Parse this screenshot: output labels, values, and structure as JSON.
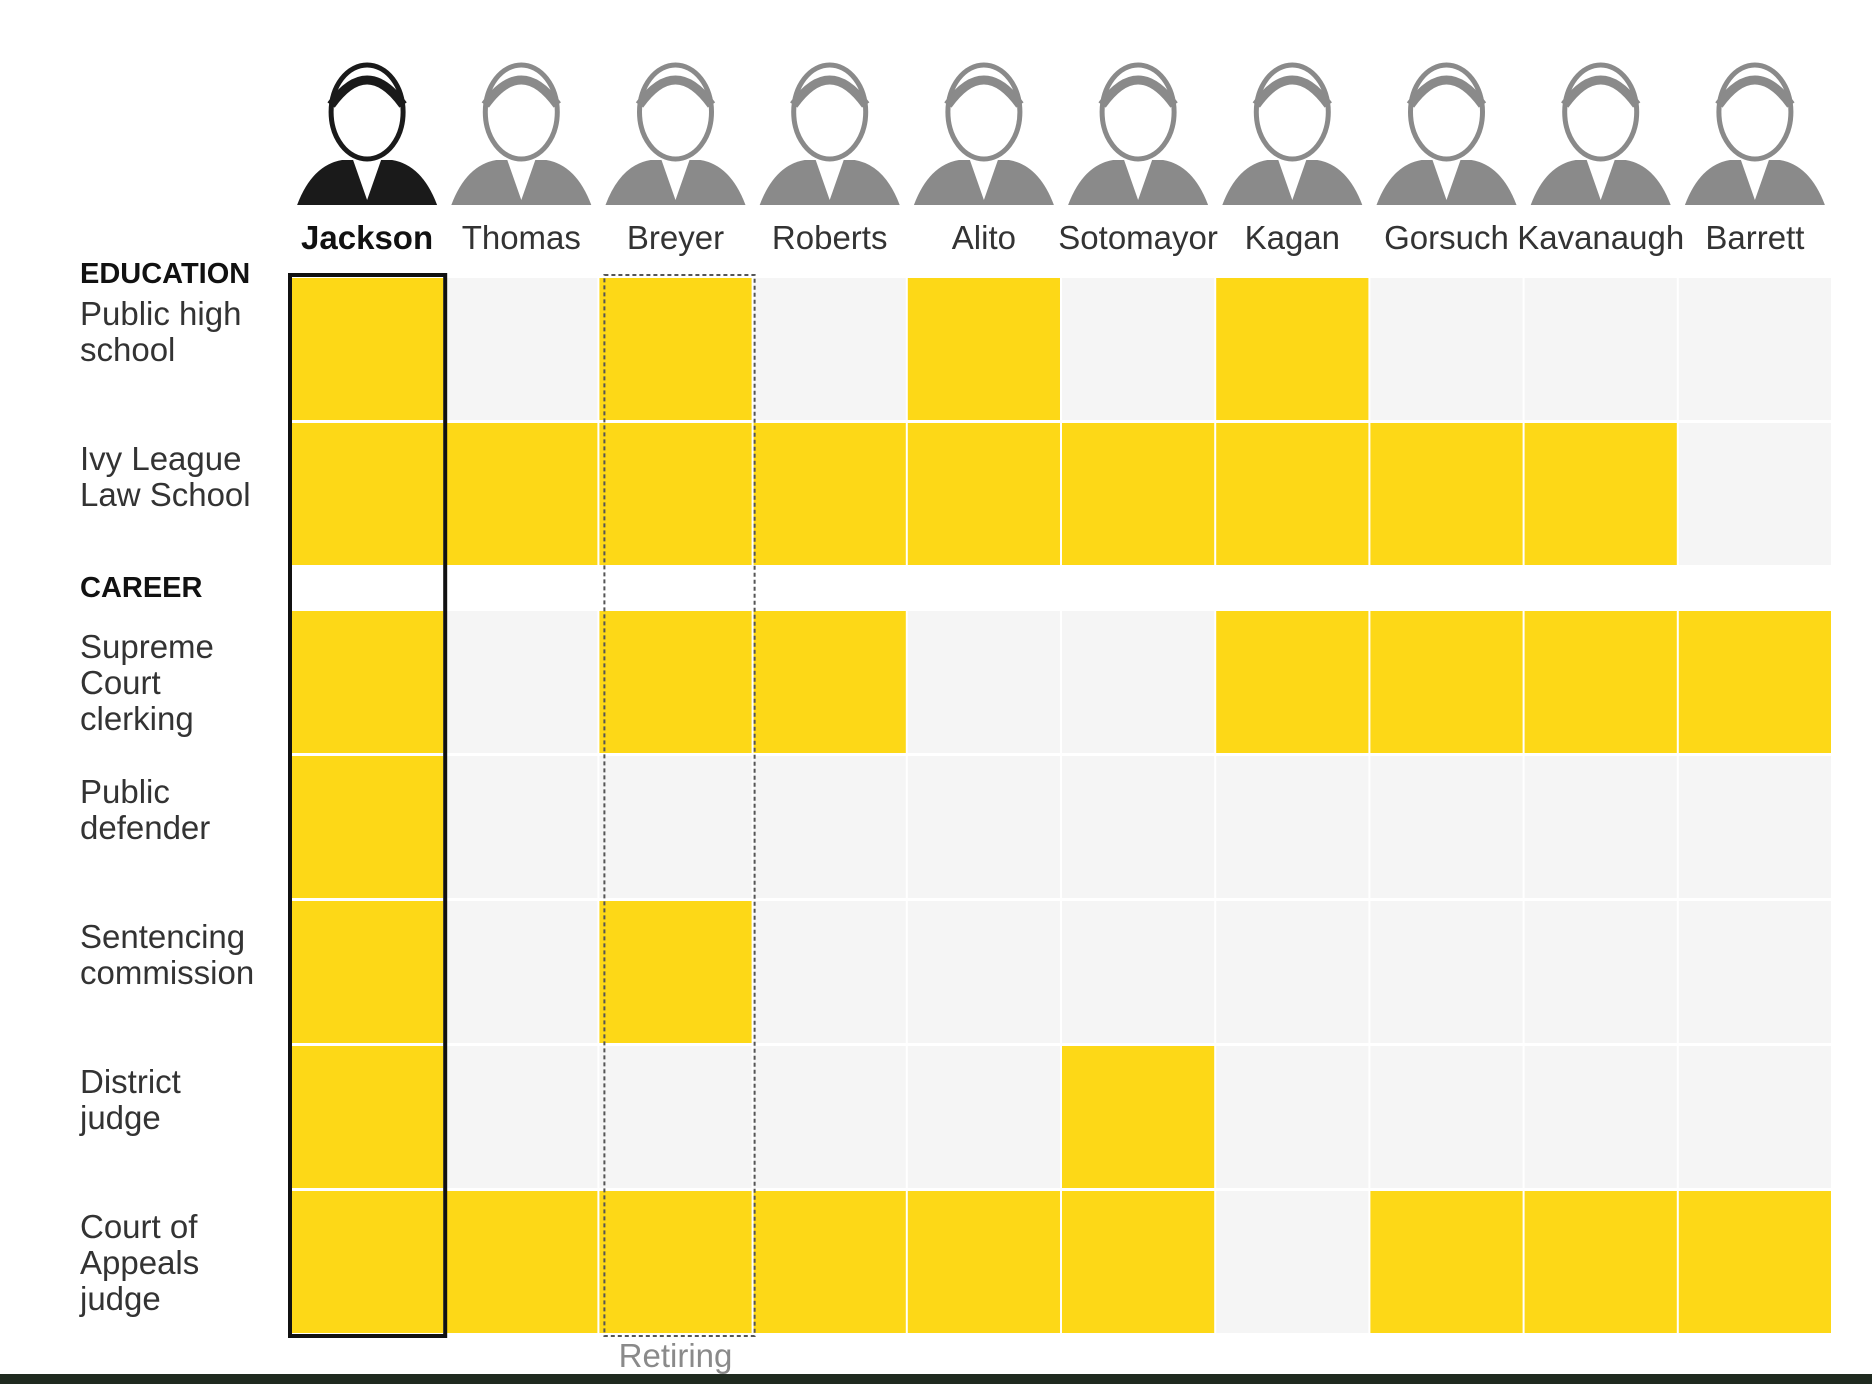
{
  "chart_data": {
    "type": "heatmap",
    "title": "",
    "columns": [
      "Jackson",
      "Thomas",
      "Breyer",
      "Roberts",
      "Alito",
      "Sotomayor",
      "Kagan",
      "Gorsuch",
      "Kavanaugh",
      "Barrett"
    ],
    "highlighted_column": "Jackson",
    "retiring_column": "Breyer",
    "retiring_label": "Retiring",
    "sections": [
      {
        "heading": "EDUCATION",
        "rows": [
          {
            "label": "Public high school",
            "values": [
              1,
              0,
              1,
              0,
              1,
              0,
              1,
              0,
              0,
              0
            ]
          },
          {
            "label": "Ivy League Law School",
            "values": [
              1,
              1,
              1,
              1,
              1,
              1,
              1,
              1,
              1,
              0
            ]
          }
        ]
      },
      {
        "heading": "CAREER",
        "rows": [
          {
            "label": "Supreme Court clerking",
            "values": [
              1,
              0,
              1,
              1,
              0,
              0,
              1,
              1,
              1,
              1
            ]
          },
          {
            "label": "Public defender",
            "values": [
              1,
              0,
              0,
              0,
              0,
              0,
              0,
              0,
              0,
              0
            ]
          },
          {
            "label": "Sentencing commission",
            "values": [
              1,
              0,
              1,
              0,
              0,
              0,
              0,
              0,
              0,
              0
            ]
          },
          {
            "label": "District judge",
            "values": [
              1,
              0,
              0,
              0,
              0,
              1,
              0,
              0,
              0,
              0
            ]
          },
          {
            "label": "Court of Appeals judge",
            "values": [
              1,
              1,
              1,
              1,
              1,
              1,
              0,
              1,
              1,
              1
            ]
          }
        ]
      }
    ],
    "colors": {
      "yes": "#fdd817",
      "no": "#f5f5f5",
      "portrait": "#8a8a8a",
      "portrait_highlight": "#1a1a1a"
    },
    "legend": "none",
    "grid": false
  }
}
